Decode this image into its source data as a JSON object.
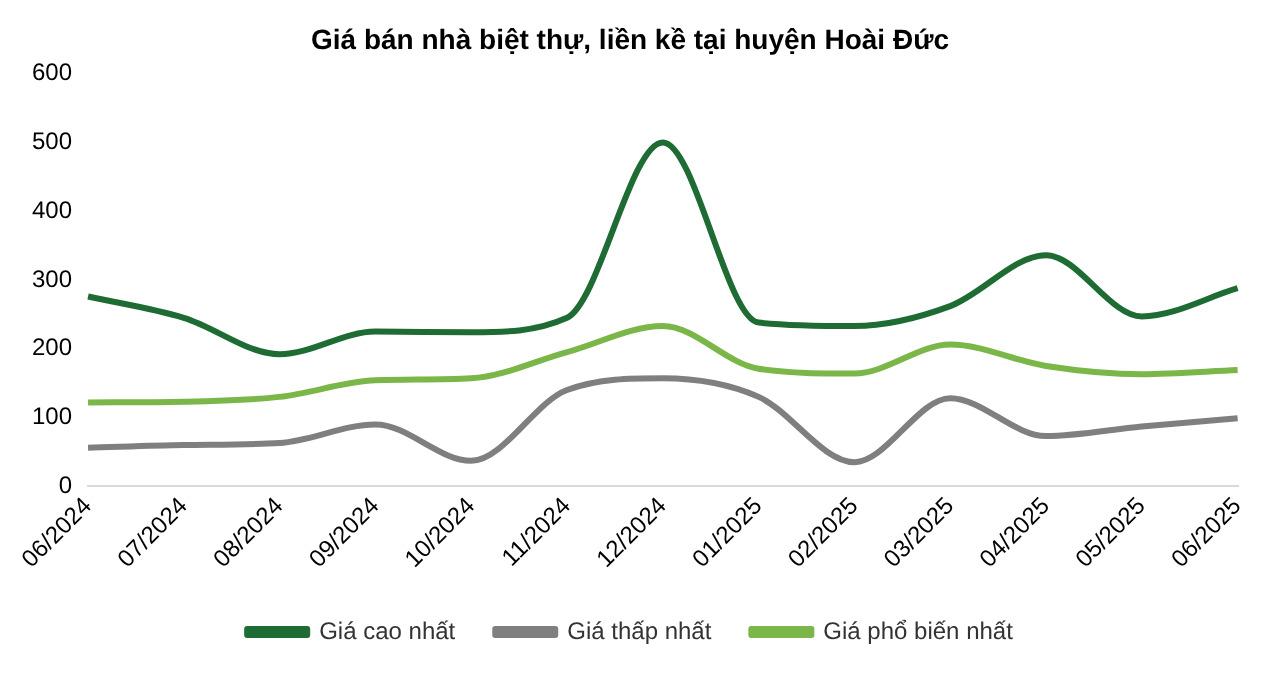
{
  "chart_data": {
    "type": "line",
    "title": "Giá bán nhà biệt thự, liền kề tại huyện Hoài Đức",
    "categories": [
      "06/2024",
      "07/2024",
      "08/2024",
      "09/2024",
      "10/2024",
      "11/2024",
      "12/2024",
      "01/2025",
      "02/2025",
      "03/2025",
      "04/2025",
      "05/2025",
      "06/2025"
    ],
    "series": [
      {
        "name": "Giá cao nhất",
        "color": "#1e6b34",
        "values": [
          276,
          245,
          192,
          225,
          224,
          245,
          500,
          238,
          233,
          262,
          336,
          247,
          288
        ]
      },
      {
        "name": "Giá thấp nhất",
        "color": "#7f7f7f",
        "values": [
          56,
          60,
          63,
          90,
          37,
          140,
          157,
          130,
          35,
          128,
          73,
          87,
          99
        ]
      },
      {
        "name": "Giá phổ biến nhất",
        "color": "#7ab648",
        "values": [
          122,
          123,
          130,
          154,
          157,
          195,
          233,
          171,
          164,
          206,
          175,
          163,
          169
        ]
      }
    ],
    "ylim": [
      0,
      600
    ],
    "yticks": [
      0,
      100,
      200,
      300,
      400,
      500,
      600
    ],
    "grid": false,
    "legend": "bottom",
    "marker": "none",
    "line_style": "solid"
  }
}
